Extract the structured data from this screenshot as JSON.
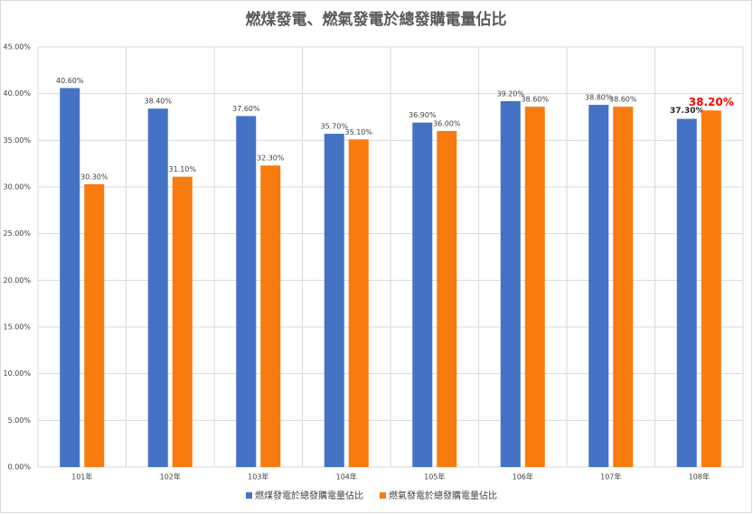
{
  "chart_data": {
    "type": "bar",
    "title": "燃煤發電、燃氣發電於總發購電量佔比",
    "categories": [
      "101年",
      "102年",
      "103年",
      "104年",
      "105年",
      "106年",
      "107年",
      "108年"
    ],
    "series": [
      {
        "name": "燃煤發電於總發購電量佔比",
        "color": "#4472c4",
        "values": [
          40.6,
          38.4,
          37.6,
          35.7,
          36.9,
          39.2,
          38.8,
          37.3
        ],
        "value_labels": [
          "40.60%",
          "38.40%",
          "37.60%",
          "35.70%",
          "36.90%",
          "39.20%",
          "38.80%",
          "37.30%"
        ]
      },
      {
        "name": "燃氣發電於總發購電量佔比",
        "color": "#f77b0f",
        "values": [
          30.3,
          31.1,
          32.3,
          35.1,
          36.0,
          38.6,
          38.6,
          38.2
        ],
        "value_labels": [
          "30.30%",
          "31.10%",
          "32.30%",
          "35.10%",
          "36.00%",
          "38.60%",
          "38.60%",
          "38.20%"
        ]
      }
    ],
    "ylim": [
      0,
      45
    ],
    "yticks": [
      {
        "value": 0,
        "label": "0.00%"
      },
      {
        "value": 5,
        "label": "5.00%"
      },
      {
        "value": 10,
        "label": "10.00%"
      },
      {
        "value": 15,
        "label": "15.00%"
      },
      {
        "value": 20,
        "label": "20.00%"
      },
      {
        "value": 25,
        "label": "25.00%"
      },
      {
        "value": 30,
        "label": "30.00%"
      },
      {
        "value": 35,
        "label": "35.00%"
      },
      {
        "value": 40,
        "label": "40.00%"
      },
      {
        "value": 45,
        "label": "45.00%"
      }
    ],
    "grid": true,
    "legend": "bottom"
  }
}
